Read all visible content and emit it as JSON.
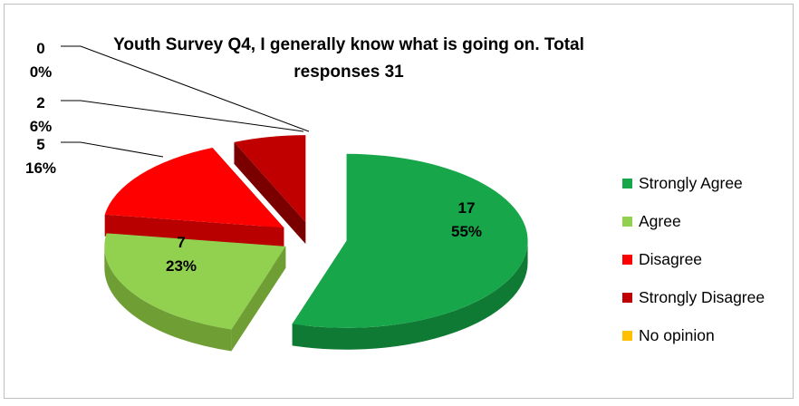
{
  "chart_data": {
    "type": "pie",
    "title": "Youth Survey Q4, I generally know what is going on. Total responses 31",
    "categories": [
      "Strongly Agree",
      "Agree",
      "Disagree",
      "Strongly Disagree",
      "No opinion"
    ],
    "values": [
      17,
      7,
      5,
      2,
      0
    ],
    "percent_labels": [
      "55%",
      "23%",
      "16%",
      "6%",
      "0%"
    ],
    "colors": [
      "#17a64a",
      "#92d050",
      "#ff0000",
      "#c00000",
      "#ffc000"
    ],
    "side_colors": [
      "#0e7a33",
      "#6f9e35",
      "#b80000",
      "#7a0000",
      "#c79600"
    ],
    "legend_position": "right",
    "style": "3d-exploded"
  }
}
